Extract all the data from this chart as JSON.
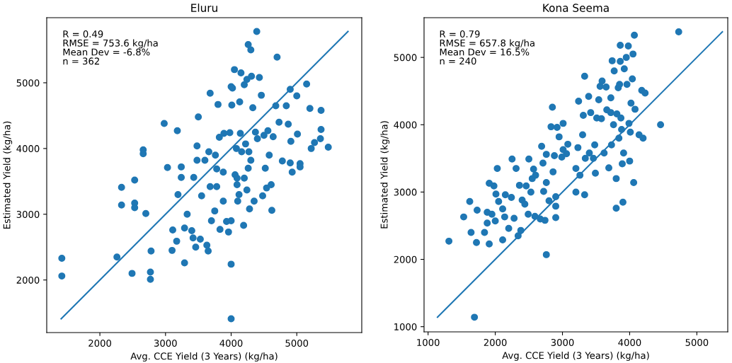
{
  "chart_data": [
    {
      "type": "scatter",
      "title": "Eluru",
      "xlabel": "Avg. CCE Yield (3 Years) (kg/ha)",
      "ylabel": "Estimated Yield (kg/ha)",
      "xlim": [
        1190,
        5990
      ],
      "ylim": [
        1200,
        5990
      ],
      "xticks": [
        2000,
        3000,
        4000,
        5000
      ],
      "yticks": [
        2000,
        3000,
        4000,
        5000
      ],
      "grid": false,
      "legend": false,
      "annotations": [
        "R = 0.49",
        "RMSE = 753.6 kg/ha",
        "Mean Dev = -6.8%",
        "n = 362"
      ],
      "series": [
        {
          "marker": "circle",
          "color": "#1f77b4",
          "x": [
            1420,
            1420,
            2260,
            2490,
            2770,
            2770,
            2780,
            2330,
            2330,
            2530,
            2530,
            2530,
            2700,
            2660,
            2660,
            2980,
            3180,
            3030,
            3240,
            3240,
            3190,
            3110,
            3100,
            3170,
            3290,
            3290,
            3330,
            3400,
            3430,
            3460,
            3480,
            3480,
            3500,
            3420,
            3530,
            3600,
            3630,
            3650,
            3680,
            3660,
            3680,
            3760,
            3780,
            3780,
            3800,
            3820,
            3830,
            3890,
            3880,
            3930,
            3960,
            3980,
            4000,
            4000,
            4000,
            4000,
            4010,
            4020,
            4050,
            4060,
            4080,
            4090,
            4100,
            4120,
            4130,
            4140,
            4150,
            4160,
            4190,
            4200,
            4200,
            4220,
            4240,
            4240,
            4260,
            4270,
            4280,
            4300,
            4300,
            4310,
            4330,
            4350,
            4370,
            4390,
            4400,
            4430,
            4460,
            4480,
            4500,
            4520,
            4560,
            4580,
            4610,
            4620,
            4640,
            4680,
            4700,
            4730,
            4780,
            4840,
            4870,
            4900,
            4910,
            4930,
            5000,
            5010,
            5050,
            5050,
            5150,
            5200,
            5220,
            5270,
            5360,
            5370,
            5370,
            5480,
            4900,
            4540,
            3880,
            3750,
            4090,
            4260,
            3550,
            3700
          ],
          "values": [
            2330,
            2060,
            2350,
            2100,
            2120,
            2010,
            2440,
            3410,
            3140,
            3520,
            3170,
            3100,
            3010,
            3980,
            3920,
            4380,
            4270,
            3710,
            3720,
            3560,
            3300,
            2760,
            2450,
            2590,
            2260,
            2790,
            3000,
            2750,
            3560,
            2500,
            3820,
            4040,
            4480,
            2640,
            2620,
            3820,
            2530,
            2440,
            4840,
            3950,
            3420,
            3900,
            3690,
            3420,
            4670,
            4170,
            2770,
            4230,
            3640,
            2890,
            2730,
            4240,
            2240,
            1410,
            2900,
            4940,
            4660,
            4920,
            5200,
            3600,
            4000,
            3550,
            3200,
            3300,
            4710,
            4230,
            5150,
            3950,
            2830,
            4970,
            3550,
            4070,
            3370,
            5050,
            5580,
            3950,
            3080,
            5500,
            3820,
            5100,
            4620,
            3200,
            4250,
            5780,
            4150,
            5080,
            4810,
            3280,
            4200,
            3700,
            4270,
            3900,
            3450,
            3060,
            4180,
            4650,
            5390,
            4400,
            3810,
            4650,
            4370,
            4900,
            4110,
            3640,
            4800,
            4220,
            3770,
            3720,
            4980,
            4610,
            4000,
            4090,
            4150,
            4290,
            4580,
            4020,
            3780,
            3400,
            3200,
            3050,
            3450,
            3700,
            3280,
            2900
          ]
        },
        {
          "type": "line",
          "marker": "none",
          "color": "#1f77b4",
          "x": [
            1410,
            5780
          ],
          "values": [
            1410,
            5780
          ]
        }
      ]
    },
    {
      "type": "scatter",
      "title": "Kona Seema",
      "xlabel": "Avg. CCE Yield (3 Years) (kg/ha)",
      "ylabel": "Estimated Yield (kg/ha)",
      "xlim": [
        940,
        5460
      ],
      "ylim": [
        923,
        5590
      ],
      "xticks": [
        1000,
        2000,
        3000,
        4000,
        5000
      ],
      "yticks": [
        1000,
        2000,
        3000,
        4000,
        5000
      ],
      "grid": false,
      "legend": false,
      "annotations": [
        "R = 0.79",
        "RMSE = 657.8 kg/ha",
        "Mean Dev = 16.5%",
        "n = 240"
      ],
      "series": [
        {
          "marker": "circle",
          "color": "#1f77b4",
          "x": [
            1310,
            1530,
            1620,
            1640,
            1690,
            1720,
            1730,
            1840,
            1880,
            1880,
            1910,
            1910,
            1950,
            1980,
            2000,
            2010,
            2030,
            2050,
            2110,
            2110,
            2140,
            2150,
            2200,
            2240,
            2250,
            2280,
            2310,
            2340,
            2360,
            2380,
            2400,
            2440,
            2460,
            2490,
            2500,
            2530,
            2550,
            2570,
            2590,
            2600,
            2670,
            2690,
            2710,
            2720,
            2740,
            2760,
            2760,
            2760,
            2800,
            2830,
            2850,
            2860,
            2880,
            2900,
            2900,
            2900,
            2920,
            2950,
            2990,
            3010,
            3010,
            3060,
            3080,
            3200,
            3200,
            3230,
            3240,
            3260,
            3300,
            3310,
            3330,
            3330,
            3340,
            3390,
            3400,
            3420,
            3460,
            3480,
            3490,
            3510,
            3540,
            3560,
            3590,
            3620,
            3650,
            3660,
            3690,
            3720,
            3730,
            3740,
            3760,
            3770,
            3800,
            3800,
            3810,
            3830,
            3840,
            3850,
            3860,
            3860,
            3880,
            3890,
            3900,
            3910,
            3920,
            3950,
            3960,
            3980,
            4000,
            4010,
            4020,
            4040,
            4050,
            4060,
            4070,
            4080,
            4140,
            4180,
            4230,
            4200,
            4460,
            4730,
            3580,
            3720,
            3870,
            3990
          ],
          "values": [
            2270,
            2630,
            2860,
            2400,
            1140,
            2250,
            2730,
            2400,
            2540,
            2700,
            2230,
            3130,
            2670,
            3090,
            2570,
            2970,
            3350,
            2860,
            2290,
            2750,
            2630,
            2960,
            2460,
            2920,
            3490,
            2610,
            3350,
            2350,
            3100,
            2430,
            2880,
            2820,
            3090,
            2670,
            3490,
            3000,
            3200,
            3340,
            2640,
            3250,
            2600,
            3680,
            3430,
            3010,
            2580,
            3560,
            3140,
            2070,
            2870,
            3970,
            4260,
            3300,
            3540,
            2930,
            2790,
            2620,
            3960,
            3820,
            3520,
            3630,
            4020,
            3570,
            3710,
            3350,
            3000,
            3660,
            4350,
            3250,
            3850,
            4140,
            2960,
            4720,
            3500,
            4420,
            3580,
            4180,
            3500,
            3700,
            3280,
            4100,
            4370,
            4570,
            4650,
            3580,
            4560,
            4220,
            3360,
            4400,
            3700,
            4950,
            4000,
            4800,
            3200,
            2760,
            4160,
            4550,
            3800,
            4600,
            5180,
            4940,
            3930,
            3420,
            2850,
            3580,
            4830,
            5000,
            4600,
            5170,
            3460,
            3890,
            4320,
            4680,
            5050,
            3140,
            5330,
            4230,
            3850,
            4510,
            4470,
            3800,
            4000,
            5380,
            4090,
            4180,
            4100,
            4020
          ]
        },
        {
          "type": "line",
          "marker": "none",
          "color": "#1f77b4",
          "x": [
            1140,
            5380
          ],
          "values": [
            1140,
            5380
          ]
        }
      ]
    }
  ]
}
